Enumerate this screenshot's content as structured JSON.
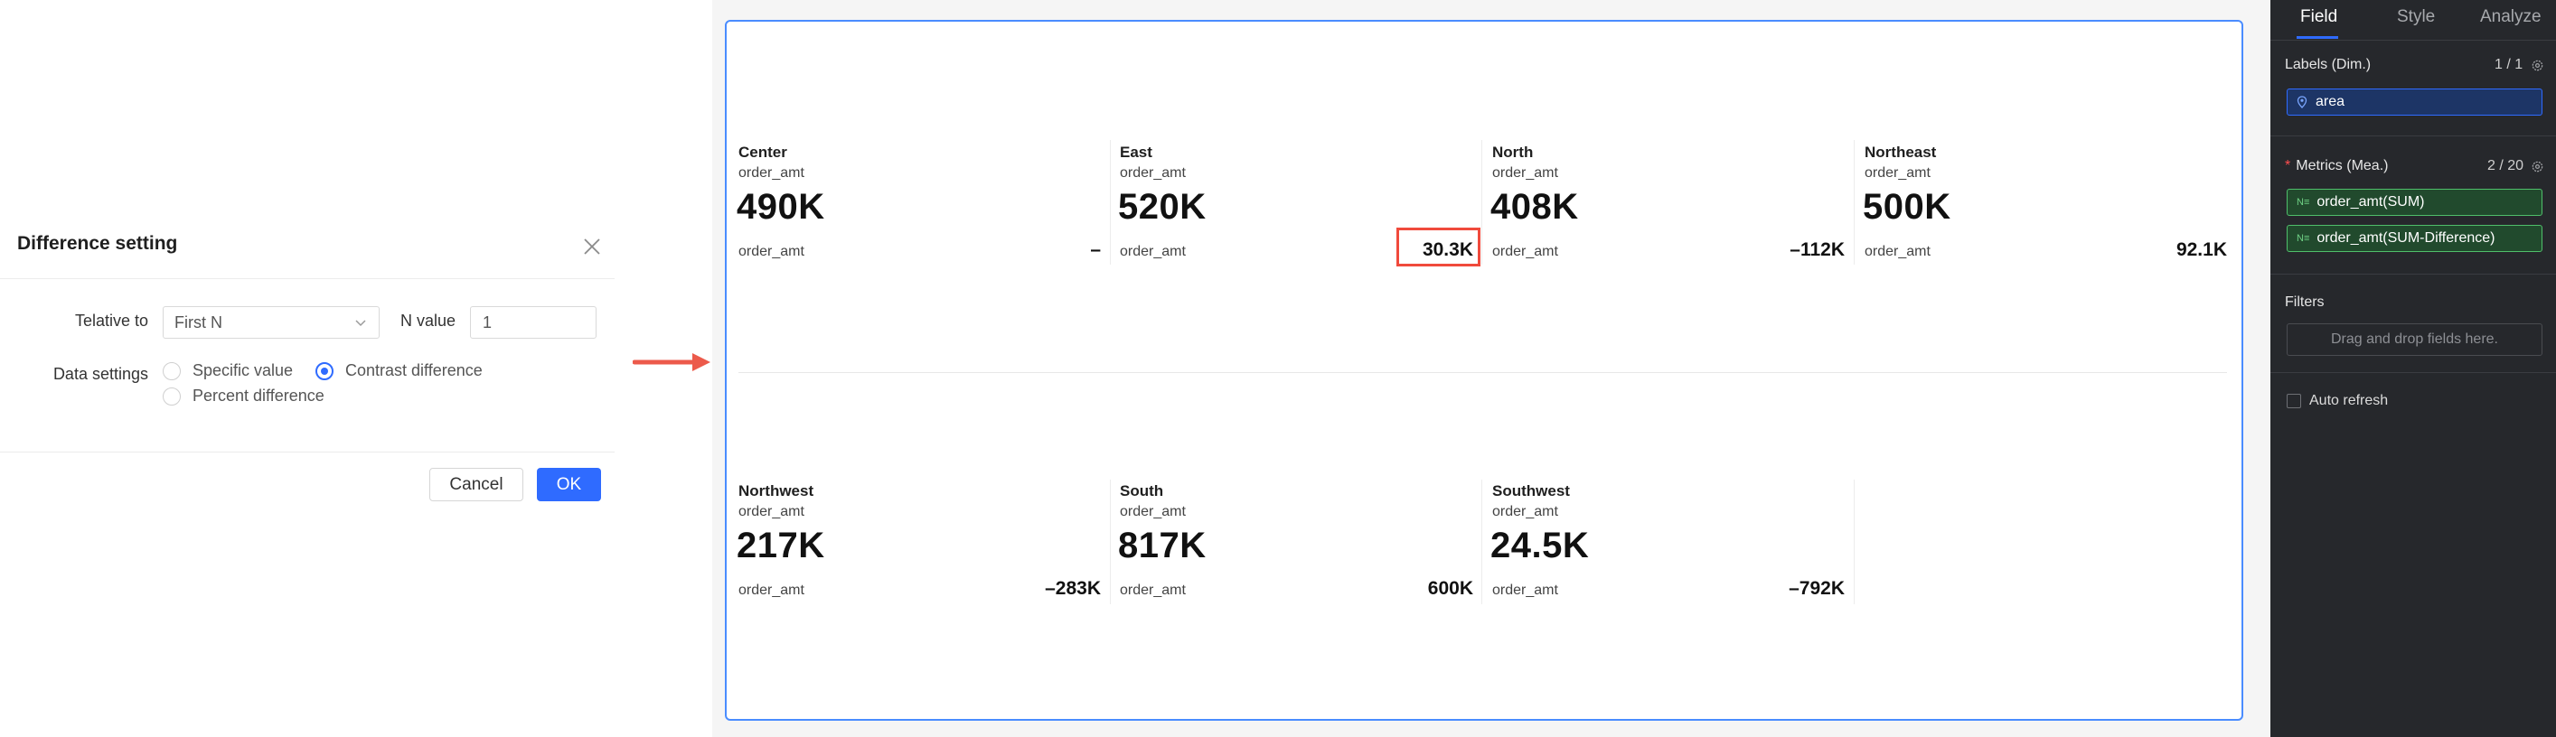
{
  "dialog": {
    "title": "Difference setting",
    "relative_label": "Telative to",
    "relative_value": "First N",
    "n_label": "N value",
    "n_value": "1",
    "data_settings_label": "Data settings",
    "options": [
      {
        "label": "Specific value",
        "checked": false
      },
      {
        "label": "Contrast difference",
        "checked": true
      },
      {
        "label": "Percent difference",
        "checked": false
      }
    ],
    "cancel_label": "Cancel",
    "ok_label": "OK"
  },
  "cards": [
    {
      "name": "Center",
      "metric": "order_amt",
      "value": "490K",
      "cmp_label": "order_amt",
      "diff": "–"
    },
    {
      "name": "East",
      "metric": "order_amt",
      "value": "520K",
      "cmp_label": "order_amt",
      "diff": "30.3K"
    },
    {
      "name": "North",
      "metric": "order_amt",
      "value": "408K",
      "cmp_label": "order_amt",
      "diff": "–112K"
    },
    {
      "name": "Northeast",
      "metric": "order_amt",
      "value": "500K",
      "cmp_label": "order_amt",
      "diff": "92.1K"
    },
    {
      "name": "Northwest",
      "metric": "order_amt",
      "value": "217K",
      "cmp_label": "order_amt",
      "diff": "–283K"
    },
    {
      "name": "South",
      "metric": "order_amt",
      "value": "817K",
      "cmp_label": "order_amt",
      "diff": "600K"
    },
    {
      "name": "Southwest",
      "metric": "order_amt",
      "value": "24.5K",
      "cmp_label": "order_amt",
      "diff": "–792K"
    }
  ],
  "panel": {
    "tabs": [
      "Field",
      "Style",
      "Analyze"
    ],
    "active_tab": "Field",
    "labels_title": "Labels (Dim.)",
    "labels_count": "1 / 1",
    "dim_field": "area",
    "metrics_title": "Metrics (Mea.)",
    "metrics_count": "2 / 20",
    "metric_fields": [
      "order_amt(SUM)",
      "order_amt(SUM-Difference)"
    ],
    "filters_title": "Filters",
    "filters_placeholder": "Drag and drop fields here.",
    "auto_refresh": "Auto refresh"
  },
  "colors": {
    "accent": "#2f6bff",
    "highlight": "#f04a3c",
    "panel_bg": "#26282c",
    "measure_green": "#4fbf6a"
  },
  "icons": {
    "close": "close-icon",
    "select": "chevron-down-icon",
    "arrow": "arrow-right-icon",
    "dimension": "location-pin-icon",
    "measure": "number-type-icon",
    "settings": "gear-icon"
  }
}
